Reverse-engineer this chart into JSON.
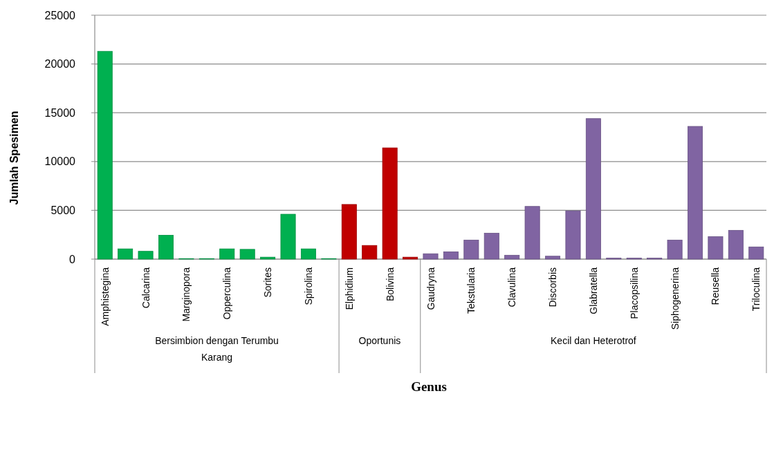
{
  "chart_data": {
    "type": "bar",
    "xlabel": "Genus",
    "ylabel": "Jumlah Spesimen",
    "categories": [
      "Amphistegina",
      null,
      "Calcarina",
      null,
      "Marginopora",
      null,
      "Opperculina",
      null,
      "Sorites",
      null,
      "Spirolina",
      null,
      "Elphidium",
      null,
      "Bolivina",
      null,
      "Gaudryna",
      null,
      "Tekstularia",
      null,
      "Clavulina",
      null,
      "Discorbis",
      null,
      "Glabratella",
      null,
      "Placopsilina",
      null,
      "Siphogenerina",
      null,
      "Reusella",
      null,
      "Triloculina"
    ],
    "series": [
      {
        "color": "#00b050",
        "values": [
          21300,
          1050,
          800,
          2450,
          50,
          50,
          1050,
          1000,
          200,
          4600,
          1050,
          50,
          null,
          null,
          null,
          null,
          null,
          null,
          null,
          null,
          null,
          null,
          null,
          null,
          null,
          null,
          null,
          null,
          null,
          null,
          null,
          null,
          null
        ]
      },
      {
        "color": "#c00000",
        "values": [
          null,
          null,
          null,
          null,
          null,
          null,
          null,
          null,
          null,
          null,
          null,
          null,
          5600,
          1400,
          11400,
          200,
          null,
          null,
          null,
          null,
          null,
          null,
          null,
          null,
          null,
          null,
          null,
          null,
          null,
          null,
          null,
          null,
          null
        ]
      },
      {
        "color": "#8064a2",
        "values": [
          null,
          null,
          null,
          null,
          null,
          null,
          null,
          null,
          null,
          null,
          null,
          null,
          null,
          null,
          null,
          null,
          550,
          750,
          1950,
          2650,
          400,
          5400,
          300,
          4950,
          14400,
          100,
          100,
          100,
          1950,
          13600,
          2300,
          2950,
          1250
        ]
      }
    ],
    "ylim": [
      0,
      25000
    ],
    "yticks": [
      0,
      5000,
      10000,
      15000,
      20000,
      25000
    ],
    "grid": "y",
    "annotations": [
      "Bersimbion dengan Terumbu Karang",
      "Oportunis",
      "Kecil dan Heterotrof"
    ]
  }
}
